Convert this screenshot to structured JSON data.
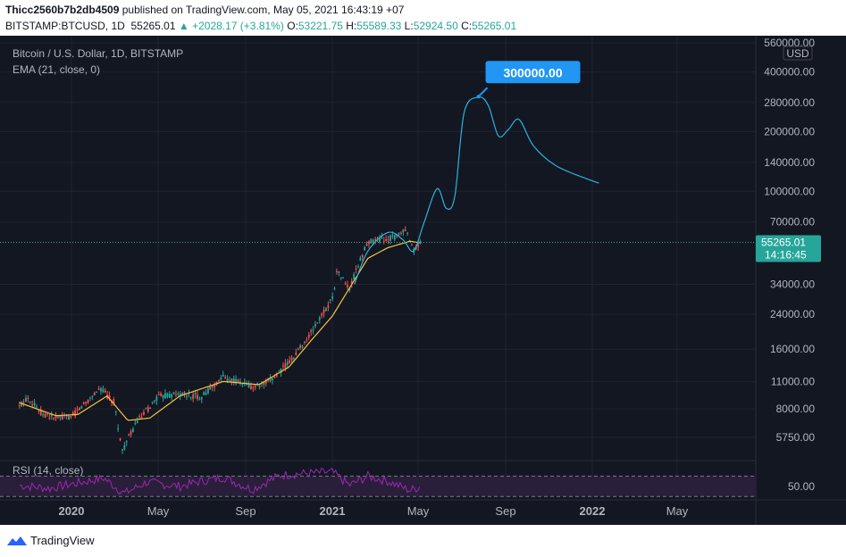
{
  "header": {
    "author": "Thicc2560b7b2db4509",
    "published": "published on TradingView.com, May 05, 2021 16:43:19 +07",
    "symbol": "BITSTAMP:BTCUSD, 1D",
    "last": "55265.01",
    "change": "▲ +2028.17 (+3.81%)",
    "o_label": "O:",
    "o_value": "53221.75",
    "h_label": "H:",
    "h_value": "55589.33",
    "l_label": "L:",
    "l_value": "52924.50",
    "c_label": "C:",
    "c_value": "55265.01"
  },
  "legend": {
    "title": "Bitcoin / U.S. Dollar, 1D, BITSTAMP",
    "ema": "EMA (21, close, 0)",
    "rsi": "RSI (14, close)"
  },
  "price_axis": {
    "currency": "USD",
    "ticks": [
      "560000.00",
      "400000.00",
      "280000.00",
      "200000.00",
      "140000.00",
      "100000.00",
      "70000.00",
      "34000.00",
      "24000.00",
      "16000.00",
      "11000.00",
      "8000.00",
      "5750.00"
    ]
  },
  "rsi_axis": {
    "ticks": [
      "50.00"
    ]
  },
  "time_axis": {
    "ticks": [
      "2020",
      "May",
      "Sep",
      "2021",
      "May",
      "Sep",
      "2022",
      "May"
    ]
  },
  "current_price": {
    "value": "55265.01",
    "countdown": "14:16:45"
  },
  "annotation": {
    "text": "300000.00"
  },
  "footer": {
    "brand": "TradingView"
  },
  "colors": {
    "background": "#131722",
    "candle_up": "#26a69a",
    "candle_down": "#ef5350",
    "ema": "#f5c342",
    "projection": "#2cb3d9",
    "rsi": "#9c27b0",
    "callout": "#2196f3"
  },
  "chart_data": {
    "type": "line",
    "log_scale": true,
    "y_unit": "USD",
    "series": [
      {
        "name": "BTCUSD",
        "x": [
          "2019-10-20",
          "2019-11-01",
          "2019-11-20",
          "2019-12-10",
          "2020-01-01",
          "2020-02-10",
          "2020-03-01",
          "2020-03-12",
          "2020-04-01",
          "2020-05-01",
          "2020-06-01",
          "2020-07-01",
          "2020-08-01",
          "2020-09-10",
          "2020-10-01",
          "2020-11-01",
          "2020-12-01",
          "2021-01-01",
          "2021-01-08",
          "2021-01-25",
          "2021-02-10",
          "2021-02-21",
          "2021-03-10",
          "2021-04-01",
          "2021-04-14",
          "2021-04-25",
          "2021-05-05"
        ],
        "values": [
          8200,
          9200,
          7600,
          7200,
          7300,
          10200,
          8600,
          4900,
          6800,
          9200,
          9500,
          9200,
          11600,
          10300,
          10700,
          13700,
          19000,
          29000,
          40000,
          32000,
          46000,
          56000,
          57000,
          59000,
          63000,
          50000,
          55265
        ]
      },
      {
        "name": "EMA (21, close, 0)",
        "x": [
          "2019-10-20",
          "2019-12-10",
          "2020-01-10",
          "2020-02-20",
          "2020-03-20",
          "2020-04-20",
          "2020-06-01",
          "2020-08-01",
          "2020-09-20",
          "2020-11-01",
          "2020-12-01",
          "2021-01-01",
          "2021-01-25",
          "2021-02-20",
          "2021-03-20",
          "2021-04-20",
          "2021-05-05"
        ],
        "values": [
          8600,
          7400,
          7500,
          9300,
          7000,
          7200,
          9300,
          11000,
          10600,
          13000,
          17500,
          23500,
          32500,
          46000,
          52000,
          56000,
          55000
        ]
      },
      {
        "name": "Projection",
        "x": [
          "2021-02-01",
          "2021-02-20",
          "2021-03-20",
          "2021-04-10",
          "2021-04-25",
          "2021-05-10",
          "2021-05-28",
          "2021-06-10",
          "2021-06-22",
          "2021-07-05",
          "2021-07-25",
          "2021-08-08",
          "2021-08-22",
          "2021-09-05",
          "2021-09-20",
          "2021-10-10",
          "2021-11-10",
          "2021-12-20",
          "2022-01-10"
        ],
        "values": [
          34000,
          50000,
          62000,
          57000,
          50000,
          70000,
          103000,
          82000,
          95000,
          250000,
          298000,
          270000,
          190000,
          205000,
          230000,
          170000,
          135000,
          117000,
          110000
        ]
      }
    ],
    "rsi": {
      "name": "RSI (14, close)",
      "x": [
        "2019-10-20",
        "2019-12-01",
        "2020-01-15",
        "2020-02-15",
        "2020-03-15",
        "2020-04-15",
        "2020-06-01",
        "2020-07-01",
        "2020-08-01",
        "2020-09-10",
        "2020-10-20",
        "2020-12-01",
        "2021-01-01",
        "2021-01-25",
        "2021-02-20",
        "2021-03-20",
        "2021-04-20",
        "2021-05-05"
      ],
      "values": [
        52,
        46,
        58,
        66,
        36,
        58,
        50,
        60,
        68,
        44,
        72,
        76,
        78,
        52,
        70,
        60,
        42,
        50
      ],
      "levels": [
        70,
        30
      ]
    },
    "annotation": {
      "x": "2021-07-25",
      "y": 300000,
      "label": "300000.00"
    },
    "last_price": 55265.01,
    "x_ticks": [
      "2020",
      "May",
      "Sep",
      "2021",
      "May",
      "Sep",
      "2022",
      "May"
    ],
    "y_ticks": [
      560000,
      400000,
      280000,
      200000,
      140000,
      100000,
      70000,
      34000,
      24000,
      16000,
      11000,
      8000,
      5750
    ]
  }
}
